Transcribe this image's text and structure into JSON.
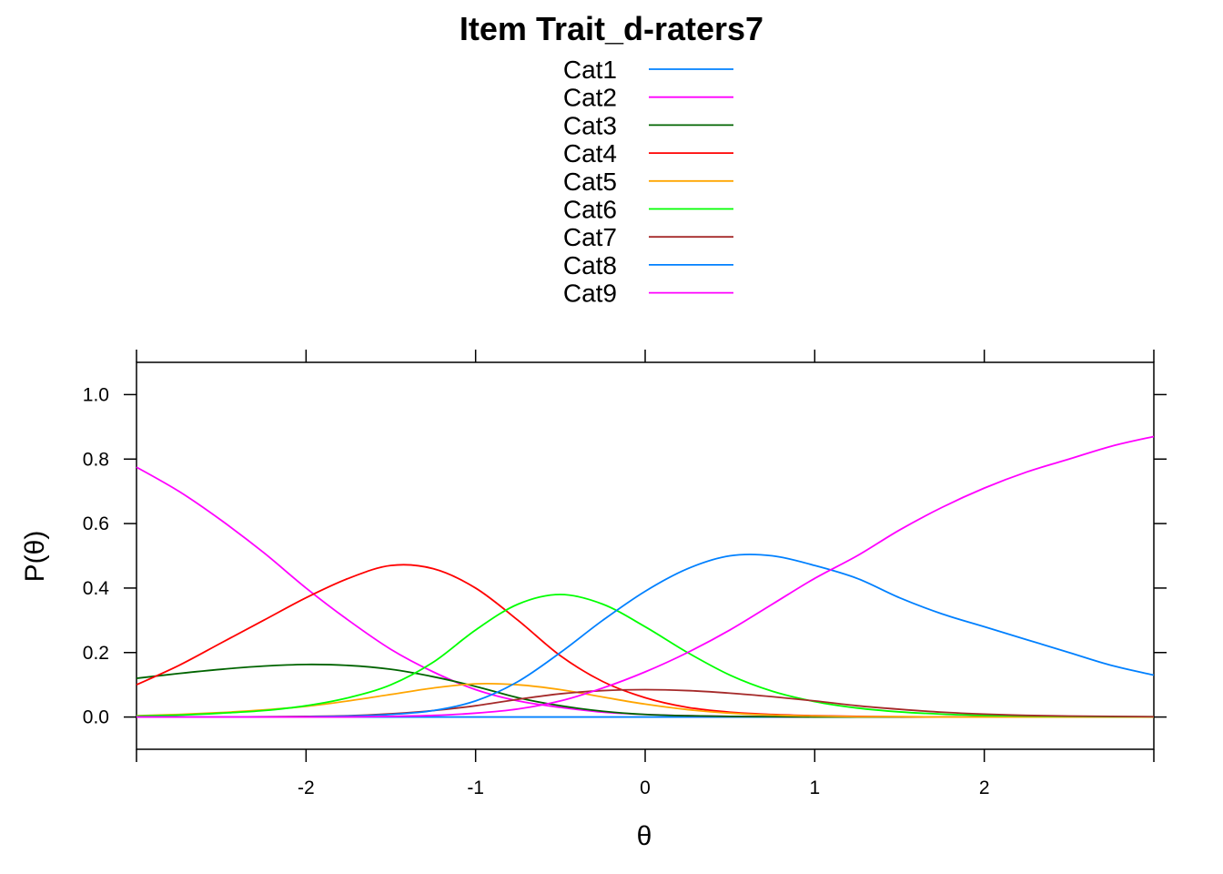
{
  "chart_data": {
    "type": "line",
    "title": "Item Trait_d-raters7",
    "xlabel": "θ",
    "ylabel": "P(θ)",
    "xlim": [
      -3,
      3
    ],
    "ylim": [
      -0.1,
      1.1
    ],
    "x_ticks": [
      -2,
      -1,
      0,
      1,
      2
    ],
    "y_ticks": [
      0.0,
      0.2,
      0.4,
      0.6,
      0.8,
      1.0
    ],
    "x_tick_labels": [
      "-2",
      "-1",
      "0",
      "1",
      "2"
    ],
    "y_tick_labels": [
      "0.0",
      "0.2",
      "0.4",
      "0.6",
      "0.8",
      "1.0"
    ],
    "legend_position": "top",
    "grid": false,
    "x": [
      -3,
      -2.75,
      -2.5,
      -2.25,
      -2,
      -1.75,
      -1.5,
      -1.25,
      -1,
      -0.75,
      -0.5,
      -0.25,
      0,
      0.25,
      0.5,
      0.75,
      1,
      1.25,
      1.5,
      1.75,
      2,
      2.25,
      2.5,
      2.75,
      3
    ],
    "series": [
      {
        "name": "Cat1",
        "color": "#0080FF",
        "values": [
          0,
          0,
          0,
          0,
          0,
          0,
          0,
          0,
          0,
          0,
          0,
          0,
          0,
          0,
          0,
          0,
          0,
          0,
          0,
          0,
          0,
          0,
          0,
          0,
          0
        ]
      },
      {
        "name": "Cat2",
        "color": "#FF00FF",
        "values": [
          0.775,
          0.7,
          0.61,
          0.51,
          0.4,
          0.3,
          0.21,
          0.14,
          0.085,
          0.05,
          0.03,
          0.015,
          0.008,
          0.004,
          0.002,
          0.001,
          0,
          0,
          0,
          0,
          0,
          0,
          0,
          0,
          0
        ]
      },
      {
        "name": "Cat3",
        "color": "#006400",
        "values": [
          0.12,
          0.135,
          0.148,
          0.158,
          0.163,
          0.16,
          0.148,
          0.125,
          0.095,
          0.06,
          0.035,
          0.018,
          0.008,
          0.004,
          0.002,
          0.001,
          0,
          0,
          0,
          0,
          0,
          0,
          0,
          0,
          0
        ]
      },
      {
        "name": "Cat4",
        "color": "#FF0000",
        "values": [
          0.1,
          0.16,
          0.23,
          0.3,
          0.37,
          0.43,
          0.47,
          0.46,
          0.4,
          0.3,
          0.19,
          0.11,
          0.06,
          0.03,
          0.015,
          0.008,
          0.004,
          0.002,
          0.001,
          0,
          0,
          0,
          0,
          0,
          0
        ]
      },
      {
        "name": "Cat5",
        "color": "#FFA500",
        "values": [
          0.004,
          0.008,
          0.014,
          0.022,
          0.033,
          0.05,
          0.07,
          0.09,
          0.103,
          0.1,
          0.085,
          0.062,
          0.04,
          0.023,
          0.012,
          0.006,
          0.003,
          0.001,
          0.001,
          0,
          0,
          0,
          0,
          0,
          0
        ]
      },
      {
        "name": "Cat6",
        "color": "#00FF00",
        "values": [
          0.003,
          0.006,
          0.012,
          0.02,
          0.035,
          0.06,
          0.1,
          0.17,
          0.27,
          0.35,
          0.38,
          0.35,
          0.28,
          0.2,
          0.13,
          0.08,
          0.048,
          0.028,
          0.016,
          0.009,
          0.005,
          0.003,
          0.002,
          0.001,
          0.001
        ]
      },
      {
        "name": "Cat7",
        "color": "#A52A2A",
        "values": [
          0,
          0,
          0,
          0.001,
          0.002,
          0.004,
          0.01,
          0.02,
          0.035,
          0.055,
          0.072,
          0.082,
          0.085,
          0.082,
          0.074,
          0.063,
          0.05,
          0.035,
          0.024,
          0.015,
          0.009,
          0.005,
          0.003,
          0.002,
          0.001
        ]
      },
      {
        "name": "Cat8",
        "color": "#0080FF",
        "values": [
          0,
          0,
          0,
          0,
          0.001,
          0.003,
          0.008,
          0.02,
          0.05,
          0.11,
          0.2,
          0.3,
          0.39,
          0.46,
          0.5,
          0.5,
          0.47,
          0.43,
          0.37,
          0.32,
          0.28,
          0.24,
          0.2,
          0.16,
          0.13
        ]
      },
      {
        "name": "Cat9",
        "color": "#FF00FF",
        "values": [
          0,
          0,
          0,
          0,
          0,
          0,
          0.002,
          0.005,
          0.012,
          0.025,
          0.05,
          0.09,
          0.14,
          0.2,
          0.27,
          0.35,
          0.43,
          0.5,
          0.58,
          0.65,
          0.71,
          0.76,
          0.8,
          0.84,
          0.87
        ]
      }
    ]
  }
}
